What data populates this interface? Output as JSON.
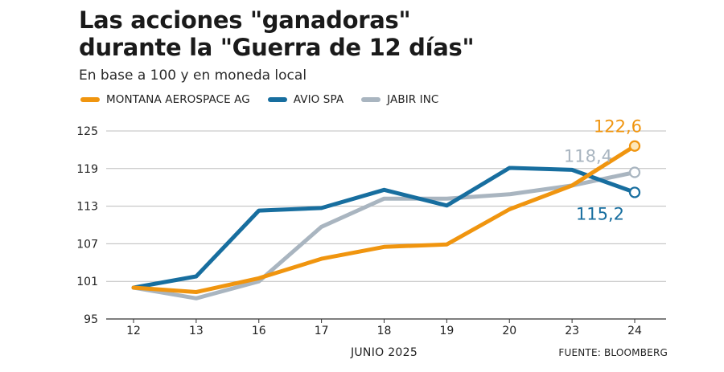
{
  "header": {
    "title_line1": "Las acciones \"ganadoras\"",
    "title_line2": "durante la \"Guerra de 12 días\"",
    "subtitle": "En base a 100 y en moneda local"
  },
  "source": "FUENTE: BLOOMBERG",
  "chart_data": {
    "type": "line",
    "title": "Las acciones \"ganadoras\" durante la \"Guerra de 12 días\"",
    "subtitle": "En base a 100 y en moneda local",
    "xlabel": "JUNIO 2025",
    "ylabel": "",
    "categories": [
      "12",
      "13",
      "16",
      "17",
      "18",
      "19",
      "20",
      "23",
      "24"
    ],
    "yticks": [
      95,
      101,
      107,
      113,
      119,
      125
    ],
    "ylim": [
      95,
      125
    ],
    "grid": "horizontal",
    "legend_position": "top-left",
    "series": [
      {
        "name": "MONTANA AEROSPACE AG",
        "color": "#f0950f",
        "values": [
          100,
          99.3,
          101.5,
          104.6,
          106.5,
          106.9,
          112.5,
          116.3,
          122.6
        ],
        "end_label": "122,6"
      },
      {
        "name": "AVIO SPA",
        "color": "#176e9f",
        "values": [
          100,
          101.8,
          112.3,
          112.7,
          115.6,
          113.1,
          119.1,
          118.8,
          115.2
        ],
        "end_label": "115,2"
      },
      {
        "name": "JABIR INC",
        "color": "#a9b5c0",
        "values": [
          100,
          98.3,
          101,
          109.7,
          114.2,
          114.2,
          114.9,
          116.3,
          118.4
        ],
        "end_label": "118,4"
      }
    ],
    "end_label_colors": [
      "#f0950f",
      "#176e9f",
      "#a9b5c0"
    ]
  }
}
